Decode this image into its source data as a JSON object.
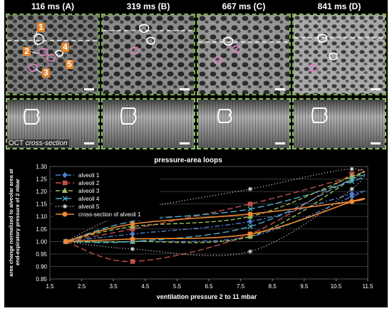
{
  "panel_titles": [
    "116 ms (A)",
    "319 ms (B)",
    "667 ms (C)",
    "841 ms (D)"
  ],
  "alveolus_numbers": [
    "1",
    "2",
    "3",
    "4",
    "5"
  ],
  "oct_label_prefix": "OCT",
  "oct_label_italic": "cross-section",
  "colors": {
    "accent_border": "#7aa850",
    "alveoli_1": "#4f7fd0",
    "alveoli_2": "#c0504d",
    "alveoli_3": "#9bbb59",
    "alveoli_4": "#4bacc6",
    "alveoli_5": "#dcdcdc",
    "cross_section": "#f08a30"
  },
  "chart_data": {
    "type": "line",
    "title": "pressure-area loops",
    "xlabel": "ventilation pressure 2 to 11 mbar",
    "ylabel": "area change normalized to alveolar area at end-expiratory pressure of 2 mbar",
    "xlim": [
      1.5,
      11.5
    ],
    "ylim": [
      0.85,
      1.3
    ],
    "xticks": [
      "1.5",
      "2.5",
      "3.5",
      "4.5",
      "5.5",
      "6.5",
      "7.5",
      "8.5",
      "9.5",
      "10.5",
      "11.5"
    ],
    "yticks": [
      "0.85",
      "0.90",
      "0.95",
      "1.00",
      "1.05",
      "1.10",
      "1.15",
      "1.20",
      "1.25",
      "1.30"
    ],
    "grid": true,
    "legend_position": "top-left",
    "series": [
      {
        "name": "alveoli 1",
        "color": "#4f7fd0",
        "dash": "7 3 2 3",
        "marker": "diamond",
        "x": [
          2.0,
          4.1,
          7.8,
          11.0,
          11.0,
          7.8,
          4.1,
          2.0
        ],
        "y": [
          1.0,
          1.03,
          1.08,
          1.19,
          1.18,
          1.02,
          1.0,
          1.0
        ]
      },
      {
        "name": "alveoli 2",
        "color": "#c0504d",
        "dash": "8 4",
        "marker": "square",
        "x": [
          2.0,
          4.1,
          7.8,
          11.0,
          11.0,
          7.8,
          4.1,
          2.0
        ],
        "y": [
          1.0,
          0.92,
          1.03,
          1.27,
          1.26,
          1.15,
          1.05,
          1.0
        ]
      },
      {
        "name": "alveoli 3",
        "color": "#9bbb59",
        "dash": "6 3",
        "marker": "triangle",
        "x": [
          2.0,
          4.1,
          7.8,
          11.0,
          11.0,
          7.8,
          4.1,
          2.0
        ],
        "y": [
          1.0,
          1.0,
          1.02,
          1.25,
          1.26,
          1.1,
          1.06,
          1.0
        ]
      },
      {
        "name": "alveoli 4",
        "color": "#4bacc6",
        "dash": "9 4",
        "marker": "cross",
        "x": [
          2.0,
          4.1,
          7.8,
          11.0,
          11.0,
          7.8,
          4.1,
          2.0
        ],
        "y": [
          1.0,
          1.0,
          1.06,
          1.25,
          1.24,
          1.13,
          1.08,
          1.0
        ]
      },
      {
        "name": "alveoli 5",
        "color": "#dcdcdc",
        "dash": "1 3",
        "marker": "star",
        "x": [
          2.0,
          4.1,
          7.8,
          11.0,
          11.0,
          7.8,
          4.1,
          2.0
        ],
        "y": [
          1.0,
          0.97,
          0.96,
          1.21,
          1.29,
          1.21,
          1.12,
          1.0
        ]
      },
      {
        "name": "cross-section of alveoli 1",
        "color": "#f08a30",
        "dash": "",
        "marker": "circle",
        "x": [
          2.0,
          4.1,
          7.8,
          11.0,
          11.0,
          7.8,
          4.1,
          2.0
        ],
        "y": [
          1.0,
          1.01,
          1.03,
          1.16,
          1.16,
          1.11,
          1.07,
          1.0
        ]
      }
    ]
  }
}
